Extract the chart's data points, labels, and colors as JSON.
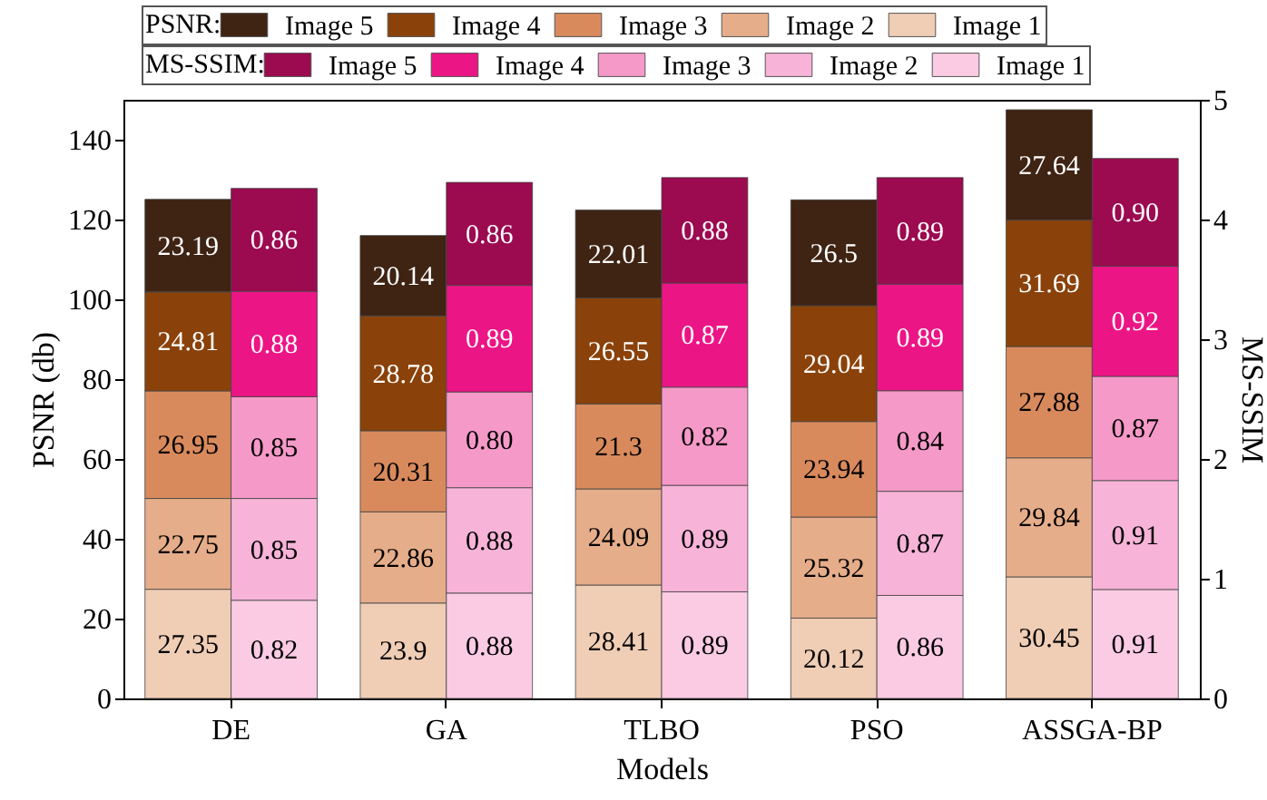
{
  "chart_data": {
    "type": "bar",
    "stacked": true,
    "xlabel": "Models",
    "ylabel": "PSNR (db)",
    "y2label": "MS-SSIM",
    "legend_title": [
      "PSNR:",
      "MS-SSIM:"
    ],
    "legend": "top",
    "categories": [
      "DE",
      "GA",
      "TLBO",
      "PSO",
      "ASSGA-BP"
    ],
    "ylim": [
      0,
      150
    ],
    "yticks": [
      0,
      20,
      40,
      60,
      80,
      100,
      120,
      140
    ],
    "y2lim": [
      0,
      5
    ],
    "y2ticks": [
      0,
      1,
      2,
      3,
      4,
      5
    ],
    "series": [
      {
        "name": "Image 1",
        "color": "#f0cdb5",
        "values": [
          27.35,
          23.9,
          28.41,
          20.12,
          30.45
        ],
        "value_labels": [
          "27.35",
          "23.9",
          "28.41",
          "20.12",
          "30.45"
        ]
      },
      {
        "name": "Image 2",
        "color": "#e6ad8a",
        "values": [
          22.75,
          22.86,
          24.09,
          25.32,
          29.84
        ],
        "value_labels": [
          "22.75",
          "22.86",
          "24.09",
          "25.32",
          "29.84"
        ]
      },
      {
        "name": "Image 3",
        "color": "#d98a5c",
        "values": [
          26.95,
          20.31,
          21.3,
          23.94,
          27.88
        ],
        "value_labels": [
          "26.95",
          "20.31",
          "21.3",
          "23.94",
          "27.88"
        ]
      },
      {
        "name": "Image 4",
        "color": "#8a420a",
        "values": [
          24.81,
          28.78,
          26.55,
          29.04,
          31.69
        ],
        "value_labels": [
          "24.81",
          "28.78",
          "26.55",
          "29.04",
          "31.69"
        ]
      },
      {
        "name": "Image 5",
        "color": "#3f2313",
        "values": [
          23.19,
          20.14,
          22.01,
          26.5,
          27.64
        ],
        "value_labels": [
          "23.19",
          "20.14",
          "22.01",
          "26.5",
          "27.64"
        ]
      },
      {
        "name": "Image 1",
        "color": "#facbe3",
        "axis": "y2",
        "values": [
          0.82,
          0.88,
          0.89,
          0.86,
          0.91
        ],
        "value_labels": [
          "0.82",
          "0.88",
          "0.89",
          "0.86",
          "0.91"
        ]
      },
      {
        "name": "Image 2",
        "color": "#f7b3d8",
        "axis": "y2",
        "values": [
          0.85,
          0.88,
          0.89,
          0.87,
          0.91
        ],
        "value_labels": [
          "0.85",
          "0.88",
          "0.89",
          "0.87",
          "0.91"
        ]
      },
      {
        "name": "Image 3",
        "color": "#f599c8",
        "axis": "y2",
        "values": [
          0.85,
          0.8,
          0.82,
          0.84,
          0.87
        ],
        "value_labels": [
          "0.85",
          "0.80",
          "0.82",
          "0.84",
          "0.87"
        ]
      },
      {
        "name": "Image 4",
        "color": "#ec1585",
        "axis": "y2",
        "values": [
          0.88,
          0.89,
          0.87,
          0.89,
          0.92
        ],
        "value_labels": [
          "0.88",
          "0.89",
          "0.87",
          "0.89",
          "0.92"
        ]
      },
      {
        "name": "Image 5",
        "color": "#9c0a50",
        "axis": "y2",
        "values": [
          0.86,
          0.86,
          0.88,
          0.89,
          0.9
        ],
        "value_labels": [
          "0.86",
          "0.86",
          "0.88",
          "0.89",
          "0.90"
        ]
      }
    ]
  }
}
